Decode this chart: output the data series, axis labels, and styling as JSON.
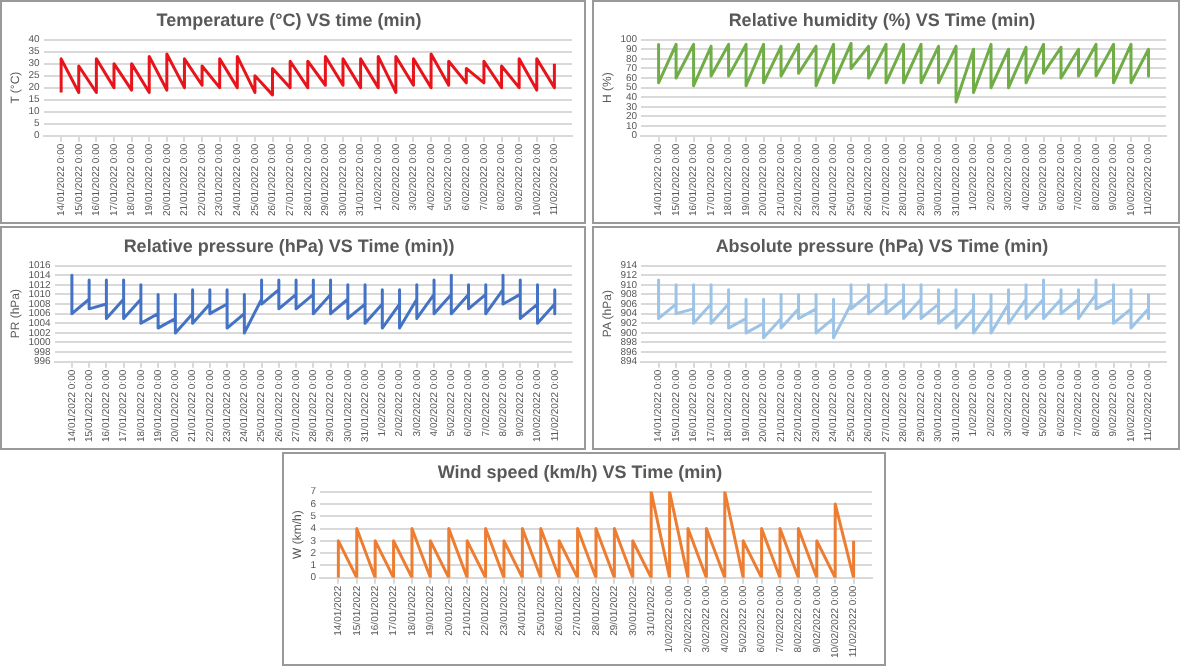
{
  "chart_data": [
    {
      "type": "line",
      "title": "Temperature (°C) VS time (min)",
      "ylabel": "T (°C)",
      "grid": "y",
      "marker": "none",
      "legend": false,
      "x": [
        "2022-01-14",
        "2022-01-14",
        "2022-01-15",
        "2022-01-15",
        "2022-01-16",
        "2022-01-16",
        "2022-01-17",
        "2022-01-17",
        "2022-01-18",
        "2022-01-18",
        "2022-01-19",
        "2022-01-19",
        "2022-01-20",
        "2022-01-20",
        "2022-01-21",
        "2022-01-21",
        "2022-01-22",
        "2022-01-22",
        "2022-01-23",
        "2022-01-23",
        "2022-01-24",
        "2022-01-24",
        "2022-01-25",
        "2022-01-25",
        "2022-01-26",
        "2022-01-26",
        "2022-01-27",
        "2022-01-27",
        "2022-01-28",
        "2022-01-28",
        "2022-01-29",
        "2022-01-29",
        "2022-01-30",
        "2022-01-30",
        "2022-01-31",
        "2022-01-31",
        "2022-02-01",
        "2022-02-01",
        "2022-02-02",
        "2022-02-02",
        "2022-02-03",
        "2022-02-03",
        "2022-02-04",
        "2022-02-04",
        "2022-02-05",
        "2022-02-05",
        "2022-02-06",
        "2022-02-06",
        "2022-02-07",
        "2022-02-07",
        "2022-02-08",
        "2022-02-08",
        "2022-02-09",
        "2022-02-09",
        "2022-02-10",
        "2022-02-10",
        "2022-02-11",
        "2022-02-11"
      ],
      "series": [
        {
          "color": "#e8141b",
          "values": [
            18,
            32,
            18,
            29,
            18,
            32,
            20,
            30,
            19,
            30,
            18,
            33,
            19,
            34,
            20,
            32,
            21,
            29,
            20,
            32,
            20,
            33,
            18,
            25,
            17,
            28,
            20,
            31,
            20,
            31,
            21,
            33,
            21,
            32,
            20,
            32,
            20,
            33,
            18,
            33,
            21,
            32,
            20,
            34,
            21,
            31,
            22,
            28,
            22,
            31,
            20,
            29,
            20,
            32,
            19,
            32,
            20,
            30
          ]
        }
      ],
      "xlim": [
        "2022-01-13",
        "2022-02-12"
      ],
      "ylim": [
        0,
        40
      ],
      "yticks": [
        0,
        5,
        10,
        15,
        20,
        25,
        30,
        35,
        40
      ],
      "xticks": [
        {
          "value": "2022-01-14",
          "label": "14/01/2022 0:00"
        },
        {
          "value": "2022-01-15",
          "label": "15/01/2022 0:00"
        },
        {
          "value": "2022-01-16",
          "label": "16/01/2022 0:00"
        },
        {
          "value": "2022-01-17",
          "label": "17/01/2022 0:00"
        },
        {
          "value": "2022-01-18",
          "label": "18/01/2022 0:00"
        },
        {
          "value": "2022-01-19",
          "label": "19/01/2022 0:00"
        },
        {
          "value": "2022-01-20",
          "label": "20/01/2022 0:00"
        },
        {
          "value": "2022-01-21",
          "label": "21/01/2022 0:00"
        },
        {
          "value": "2022-01-22",
          "label": "22/01/2022 0:00"
        },
        {
          "value": "2022-01-23",
          "label": "23/01/2022 0:00"
        },
        {
          "value": "2022-01-24",
          "label": "24/01/2022 0:00"
        },
        {
          "value": "2022-01-25",
          "label": "25/01/2022 0:00"
        },
        {
          "value": "2022-01-26",
          "label": "26/01/2022 0:00"
        },
        {
          "value": "2022-01-27",
          "label": "27/01/2022 0:00"
        },
        {
          "value": "2022-01-28",
          "label": "28/01/2022 0:00"
        },
        {
          "value": "2022-01-29",
          "label": "29/01/2022 0:00"
        },
        {
          "value": "2022-01-30",
          "label": "30/01/2022 0:00"
        },
        {
          "value": "2022-01-31",
          "label": "31/01/2022 0:00"
        },
        {
          "value": "2022-02-01",
          "label": "1/02/2022 0:00"
        },
        {
          "value": "2022-02-02",
          "label": "2/02/2022 0:00"
        },
        {
          "value": "2022-02-03",
          "label": "3/02/2022 0:00"
        },
        {
          "value": "2022-02-04",
          "label": "4/02/2022 0:00"
        },
        {
          "value": "2022-02-05",
          "label": "5/02/2022 0:00"
        },
        {
          "value": "2022-02-06",
          "label": "6/02/2022 0:00"
        },
        {
          "value": "2022-02-07",
          "label": "7/02/2022 0:00"
        },
        {
          "value": "2022-02-08",
          "label": "8/02/2022 0:00"
        },
        {
          "value": "2022-02-09",
          "label": "9/02/2022 0:00"
        },
        {
          "value": "2022-02-10",
          "label": "10/02/2022 0:00"
        },
        {
          "value": "2022-02-11",
          "label": "11/02/2022 0:00"
        }
      ]
    },
    {
      "type": "line",
      "title": "Relative humidity (%) VS Time (min)",
      "ylabel": "H (%)",
      "grid": "y",
      "marker": "none",
      "legend": false,
      "x": [
        "2022-01-14",
        "2022-01-14",
        "2022-01-15",
        "2022-01-15",
        "2022-01-16",
        "2022-01-16",
        "2022-01-17",
        "2022-01-17",
        "2022-01-18",
        "2022-01-18",
        "2022-01-19",
        "2022-01-19",
        "2022-01-20",
        "2022-01-20",
        "2022-01-21",
        "2022-01-21",
        "2022-01-22",
        "2022-01-22",
        "2022-01-23",
        "2022-01-23",
        "2022-01-24",
        "2022-01-24",
        "2022-01-25",
        "2022-01-25",
        "2022-01-26",
        "2022-01-26",
        "2022-01-27",
        "2022-01-27",
        "2022-01-28",
        "2022-01-28",
        "2022-01-29",
        "2022-01-29",
        "2022-01-30",
        "2022-01-30",
        "2022-01-31",
        "2022-01-31",
        "2022-02-01",
        "2022-02-01",
        "2022-02-02",
        "2022-02-02",
        "2022-02-03",
        "2022-02-03",
        "2022-02-04",
        "2022-02-04",
        "2022-02-05",
        "2022-02-05",
        "2022-02-06",
        "2022-02-06",
        "2022-02-07",
        "2022-02-07",
        "2022-02-08",
        "2022-02-08",
        "2022-02-09",
        "2022-02-09",
        "2022-02-10",
        "2022-02-10",
        "2022-02-11",
        "2022-02-11"
      ],
      "series": [
        {
          "color": "#70ad47",
          "values": [
            95,
            55,
            95,
            60,
            95,
            52,
            93,
            62,
            95,
            62,
            95,
            52,
            95,
            55,
            93,
            62,
            95,
            65,
            93,
            52,
            95,
            55,
            96,
            70,
            93,
            60,
            95,
            55,
            95,
            55,
            95,
            55,
            93,
            55,
            93,
            35,
            90,
            45,
            95,
            50,
            90,
            50,
            92,
            55,
            95,
            65,
            92,
            60,
            90,
            62,
            95,
            62,
            95,
            55,
            95,
            55,
            90,
            62
          ]
        }
      ],
      "xlim": [
        "2022-01-13",
        "2022-02-12"
      ],
      "ylim": [
        0,
        100
      ],
      "yticks": [
        0,
        10,
        20,
        30,
        40,
        50,
        60,
        70,
        80,
        90,
        100
      ],
      "xticks": [
        {
          "value": "2022-01-14",
          "label": "14/01/2022 0:00"
        },
        {
          "value": "2022-01-15",
          "label": "15/01/2022 0:00"
        },
        {
          "value": "2022-01-16",
          "label": "16/01/2022 0:00"
        },
        {
          "value": "2022-01-17",
          "label": "17/01/2022 0:00"
        },
        {
          "value": "2022-01-18",
          "label": "18/01/2022 0:00"
        },
        {
          "value": "2022-01-19",
          "label": "19/01/2022 0:00"
        },
        {
          "value": "2022-01-20",
          "label": "20/01/2022 0:00"
        },
        {
          "value": "2022-01-21",
          "label": "21/01/2022 0:00"
        },
        {
          "value": "2022-01-22",
          "label": "22/01/2022 0:00"
        },
        {
          "value": "2022-01-23",
          "label": "23/01/2022 0:00"
        },
        {
          "value": "2022-01-24",
          "label": "24/01/2022 0:00"
        },
        {
          "value": "2022-01-25",
          "label": "25/01/2022 0:00"
        },
        {
          "value": "2022-01-26",
          "label": "26/01/2022 0:00"
        },
        {
          "value": "2022-01-27",
          "label": "27/01/2022 0:00"
        },
        {
          "value": "2022-01-28",
          "label": "28/01/2022 0:00"
        },
        {
          "value": "2022-01-29",
          "label": "29/01/2022 0:00"
        },
        {
          "value": "2022-01-30",
          "label": "30/01/2022 0:00"
        },
        {
          "value": "2022-01-31",
          "label": "31/01/2022 0:00"
        },
        {
          "value": "2022-02-01",
          "label": "1/02/2022 0:00"
        },
        {
          "value": "2022-02-02",
          "label": "2/02/2022 0:00"
        },
        {
          "value": "2022-02-03",
          "label": "3/02/2022 0:00"
        },
        {
          "value": "2022-02-04",
          "label": "4/02/2022 0:00"
        },
        {
          "value": "2022-02-05",
          "label": "5/02/2022 0:00"
        },
        {
          "value": "2022-02-06",
          "label": "6/02/2022 0:00"
        },
        {
          "value": "2022-02-07",
          "label": "7/02/2022 0:00"
        },
        {
          "value": "2022-02-08",
          "label": "8/02/2022 0:00"
        },
        {
          "value": "2022-02-09",
          "label": "9/02/2022 0:00"
        },
        {
          "value": "2022-02-10",
          "label": "10/02/2022 0:00"
        },
        {
          "value": "2022-02-11",
          "label": "11/02/2022 0:00"
        }
      ]
    },
    {
      "type": "line",
      "title": "Relative pressure (hPa) VS Time (min))",
      "ylabel": "PR (hPa)",
      "grid": "y",
      "marker": "none",
      "legend": false,
      "x": [
        "2022-01-14",
        "2022-01-14",
        "2022-01-14",
        "2022-01-15",
        "2022-01-15",
        "2022-01-15",
        "2022-01-16",
        "2022-01-16",
        "2022-01-16",
        "2022-01-17",
        "2022-01-17",
        "2022-01-17",
        "2022-01-18",
        "2022-01-18",
        "2022-01-18",
        "2022-01-19",
        "2022-01-19",
        "2022-01-19",
        "2022-01-20",
        "2022-01-20",
        "2022-01-20",
        "2022-01-21",
        "2022-01-21",
        "2022-01-21",
        "2022-01-22",
        "2022-01-22",
        "2022-01-22",
        "2022-01-23",
        "2022-01-23",
        "2022-01-23",
        "2022-01-24",
        "2022-01-24",
        "2022-01-24",
        "2022-01-25",
        "2022-01-25",
        "2022-01-25",
        "2022-01-26",
        "2022-01-26",
        "2022-01-26",
        "2022-01-27",
        "2022-01-27",
        "2022-01-27",
        "2022-01-28",
        "2022-01-28",
        "2022-01-28",
        "2022-01-29",
        "2022-01-29",
        "2022-01-29",
        "2022-01-30",
        "2022-01-30",
        "2022-01-30",
        "2022-01-31",
        "2022-01-31",
        "2022-01-31",
        "2022-02-01",
        "2022-02-01",
        "2022-02-01",
        "2022-02-02",
        "2022-02-02",
        "2022-02-02",
        "2022-02-03",
        "2022-02-03",
        "2022-02-03",
        "2022-02-04",
        "2022-02-04",
        "2022-02-04",
        "2022-02-05",
        "2022-02-05",
        "2022-02-05",
        "2022-02-06",
        "2022-02-06",
        "2022-02-06",
        "2022-02-07",
        "2022-02-07",
        "2022-02-07",
        "2022-02-08",
        "2022-02-08",
        "2022-02-08",
        "2022-02-09",
        "2022-02-09",
        "2022-02-09",
        "2022-02-10",
        "2022-02-10",
        "2022-02-10",
        "2022-02-11",
        "2022-02-11",
        "2022-02-11"
      ],
      "series": [
        {
          "color": "#4472c4",
          "values": [
            1008,
            1014,
            1006,
            1009,
            1013,
            1007,
            1008,
            1013,
            1005,
            1009,
            1013,
            1005,
            1009,
            1012,
            1004,
            1006,
            1010,
            1003,
            1005,
            1010,
            1002,
            1006,
            1011,
            1004,
            1008,
            1011,
            1006,
            1008,
            1011,
            1003,
            1006,
            1010,
            1002,
            1009,
            1013,
            1008,
            1011,
            1013,
            1007,
            1010,
            1013,
            1007,
            1010,
            1013,
            1006,
            1010,
            1013,
            1006,
            1009,
            1012,
            1005,
            1008,
            1012,
            1004,
            1008,
            1011,
            1003,
            1008,
            1011,
            1003,
            1009,
            1012,
            1005,
            1010,
            1013,
            1006,
            1010,
            1014,
            1006,
            1010,
            1012,
            1007,
            1010,
            1012,
            1006,
            1011,
            1014,
            1008,
            1010,
            1013,
            1005,
            1008,
            1012,
            1004,
            1008,
            1011,
            1006
          ]
        }
      ],
      "xlim": [
        "2022-01-13",
        "2022-02-12"
      ],
      "ylim": [
        996,
        1016
      ],
      "yticks": [
        996,
        998,
        1000,
        1002,
        1004,
        1006,
        1008,
        1010,
        1012,
        1014,
        1016
      ],
      "xticks": [
        {
          "value": "2022-01-14",
          "label": "14/01/2022 0:00"
        },
        {
          "value": "2022-01-15",
          "label": "15/01/2022 0:00"
        },
        {
          "value": "2022-01-16",
          "label": "16/01/2022 0:00"
        },
        {
          "value": "2022-01-17",
          "label": "17/01/2022 0:00"
        },
        {
          "value": "2022-01-18",
          "label": "18/01/2022 0:00"
        },
        {
          "value": "2022-01-19",
          "label": "19/01/2022 0:00"
        },
        {
          "value": "2022-01-20",
          "label": "20/01/2022 0:00"
        },
        {
          "value": "2022-01-21",
          "label": "21/01/2022 0:00"
        },
        {
          "value": "2022-01-22",
          "label": "22/01/2022 0:00"
        },
        {
          "value": "2022-01-23",
          "label": "23/01/2022 0:00"
        },
        {
          "value": "2022-01-24",
          "label": "24/01/2022 0:00"
        },
        {
          "value": "2022-01-25",
          "label": "25/01/2022 0:00"
        },
        {
          "value": "2022-01-26",
          "label": "26/01/2022 0:00"
        },
        {
          "value": "2022-01-27",
          "label": "27/01/2022 0:00"
        },
        {
          "value": "2022-01-28",
          "label": "28/01/2022 0:00"
        },
        {
          "value": "2022-01-29",
          "label": "29/01/2022 0:00"
        },
        {
          "value": "2022-01-30",
          "label": "30/01/2022 0:00"
        },
        {
          "value": "2022-01-31",
          "label": "31/01/2022 0:00"
        },
        {
          "value": "2022-02-01",
          "label": "1/02/2022 0:00"
        },
        {
          "value": "2022-02-02",
          "label": "2/02/2022 0:00"
        },
        {
          "value": "2022-02-03",
          "label": "3/02/2022 0:00"
        },
        {
          "value": "2022-02-04",
          "label": "4/02/2022 0:00"
        },
        {
          "value": "2022-02-05",
          "label": "5/02/2022 0:00"
        },
        {
          "value": "2022-02-06",
          "label": "6/02/2022 0:00"
        },
        {
          "value": "2022-02-07",
          "label": "7/02/2022 0:00"
        },
        {
          "value": "2022-02-08",
          "label": "8/02/2022 0:00"
        },
        {
          "value": "2022-02-09",
          "label": "9/02/2022 0:00"
        },
        {
          "value": "2022-02-10",
          "label": "10/02/2022 0:00"
        },
        {
          "value": "2022-02-11",
          "label": "11/02/2022 0:00"
        }
      ]
    },
    {
      "type": "line",
      "title": "Absolute pressure (hPa) VS Time (min)",
      "ylabel": "PA (hPa)",
      "grid": "y",
      "marker": "none",
      "legend": false,
      "x": [
        "2022-01-14",
        "2022-01-14",
        "2022-01-14",
        "2022-01-15",
        "2022-01-15",
        "2022-01-15",
        "2022-01-16",
        "2022-01-16",
        "2022-01-16",
        "2022-01-17",
        "2022-01-17",
        "2022-01-17",
        "2022-01-18",
        "2022-01-18",
        "2022-01-18",
        "2022-01-19",
        "2022-01-19",
        "2022-01-19",
        "2022-01-20",
        "2022-01-20",
        "2022-01-20",
        "2022-01-21",
        "2022-01-21",
        "2022-01-21",
        "2022-01-22",
        "2022-01-22",
        "2022-01-22",
        "2022-01-23",
        "2022-01-23",
        "2022-01-23",
        "2022-01-24",
        "2022-01-24",
        "2022-01-24",
        "2022-01-25",
        "2022-01-25",
        "2022-01-25",
        "2022-01-26",
        "2022-01-26",
        "2022-01-26",
        "2022-01-27",
        "2022-01-27",
        "2022-01-27",
        "2022-01-28",
        "2022-01-28",
        "2022-01-28",
        "2022-01-29",
        "2022-01-29",
        "2022-01-29",
        "2022-01-30",
        "2022-01-30",
        "2022-01-30",
        "2022-01-31",
        "2022-01-31",
        "2022-01-31",
        "2022-02-01",
        "2022-02-01",
        "2022-02-01",
        "2022-02-02",
        "2022-02-02",
        "2022-02-02",
        "2022-02-03",
        "2022-02-03",
        "2022-02-03",
        "2022-02-04",
        "2022-02-04",
        "2022-02-04",
        "2022-02-05",
        "2022-02-05",
        "2022-02-05",
        "2022-02-06",
        "2022-02-06",
        "2022-02-06",
        "2022-02-07",
        "2022-02-07",
        "2022-02-07",
        "2022-02-08",
        "2022-02-08",
        "2022-02-08",
        "2022-02-09",
        "2022-02-09",
        "2022-02-09",
        "2022-02-10",
        "2022-02-10",
        "2022-02-10",
        "2022-02-11",
        "2022-02-11",
        "2022-02-11"
      ],
      "series": [
        {
          "color": "#9dc3e6",
          "values": [
            905,
            911,
            903,
            906,
            910,
            904,
            905,
            910,
            902,
            906,
            910,
            902,
            906,
            909,
            901,
            903,
            907,
            900,
            902,
            907,
            899,
            903,
            908,
            901,
            905,
            908,
            903,
            905,
            908,
            900,
            903,
            907,
            899,
            906,
            910,
            905,
            908,
            910,
            904,
            907,
            910,
            904,
            907,
            910,
            903,
            907,
            910,
            903,
            906,
            909,
            902,
            905,
            909,
            901,
            905,
            908,
            900,
            905,
            908,
            900,
            906,
            909,
            902,
            907,
            910,
            903,
            907,
            911,
            903,
            907,
            909,
            904,
            907,
            909,
            903,
            908,
            911,
            905,
            907,
            910,
            902,
            905,
            909,
            901,
            905,
            908,
            903
          ]
        }
      ],
      "xlim": [
        "2022-01-13",
        "2022-02-12"
      ],
      "ylim": [
        894,
        914
      ],
      "yticks": [
        894,
        896,
        898,
        900,
        902,
        904,
        906,
        908,
        910,
        912,
        914
      ],
      "xticks": [
        {
          "value": "2022-01-14",
          "label": "14/01/2022 0:00"
        },
        {
          "value": "2022-01-15",
          "label": "15/01/2022 0:00"
        },
        {
          "value": "2022-01-16",
          "label": "16/01/2022 0:00"
        },
        {
          "value": "2022-01-17",
          "label": "17/01/2022 0:00"
        },
        {
          "value": "2022-01-18",
          "label": "18/01/2022 0:00"
        },
        {
          "value": "2022-01-19",
          "label": "19/01/2022 0:00"
        },
        {
          "value": "2022-01-20",
          "label": "20/01/2022 0:00"
        },
        {
          "value": "2022-01-21",
          "label": "21/01/2022 0:00"
        },
        {
          "value": "2022-01-22",
          "label": "22/01/2022 0:00"
        },
        {
          "value": "2022-01-23",
          "label": "23/01/2022 0:00"
        },
        {
          "value": "2022-01-24",
          "label": "24/01/2022 0:00"
        },
        {
          "value": "2022-01-25",
          "label": "25/01/2022 0:00"
        },
        {
          "value": "2022-01-26",
          "label": "26/01/2022 0:00"
        },
        {
          "value": "2022-01-27",
          "label": "27/01/2022 0:00"
        },
        {
          "value": "2022-01-28",
          "label": "28/01/2022 0:00"
        },
        {
          "value": "2022-01-29",
          "label": "29/01/2022 0:00"
        },
        {
          "value": "2022-01-30",
          "label": "30/01/2022 0:00"
        },
        {
          "value": "2022-01-31",
          "label": "31/01/2022 0:00"
        },
        {
          "value": "2022-02-01",
          "label": "1/02/2022 0:00"
        },
        {
          "value": "2022-02-02",
          "label": "2/02/2022 0:00"
        },
        {
          "value": "2022-02-03",
          "label": "3/02/2022 0:00"
        },
        {
          "value": "2022-02-04",
          "label": "4/02/2022 0:00"
        },
        {
          "value": "2022-02-05",
          "label": "5/02/2022 0:00"
        },
        {
          "value": "2022-02-06",
          "label": "6/02/2022 0:00"
        },
        {
          "value": "2022-02-07",
          "label": "7/02/2022 0:00"
        },
        {
          "value": "2022-02-08",
          "label": "8/02/2022 0:00"
        },
        {
          "value": "2022-02-09",
          "label": "9/02/2022 0:00"
        },
        {
          "value": "2022-02-10",
          "label": "10/02/2022 0:00"
        },
        {
          "value": "2022-02-11",
          "label": "11/02/2022 0:00"
        }
      ]
    },
    {
      "type": "line",
      "title": "Wind speed (km/h) VS Time (min)",
      "ylabel": "W (km/h)",
      "grid": "y",
      "marker": "none",
      "legend": false,
      "x": [
        "2022-01-14",
        "2022-01-14",
        "2022-01-15",
        "2022-01-15",
        "2022-01-16",
        "2022-01-16",
        "2022-01-17",
        "2022-01-17",
        "2022-01-18",
        "2022-01-18",
        "2022-01-19",
        "2022-01-19",
        "2022-01-20",
        "2022-01-20",
        "2022-01-21",
        "2022-01-21",
        "2022-01-22",
        "2022-01-22",
        "2022-01-23",
        "2022-01-23",
        "2022-01-24",
        "2022-01-24",
        "2022-01-25",
        "2022-01-25",
        "2022-01-26",
        "2022-01-26",
        "2022-01-27",
        "2022-01-27",
        "2022-01-28",
        "2022-01-28",
        "2022-01-29",
        "2022-01-29",
        "2022-01-30",
        "2022-01-30",
        "2022-01-31",
        "2022-01-31",
        "2022-02-01",
        "2022-02-01",
        "2022-02-02",
        "2022-02-02",
        "2022-02-03",
        "2022-02-03",
        "2022-02-04",
        "2022-02-04",
        "2022-02-05",
        "2022-02-05",
        "2022-02-06",
        "2022-02-06",
        "2022-02-07",
        "2022-02-07",
        "2022-02-08",
        "2022-02-08",
        "2022-02-09",
        "2022-02-09",
        "2022-02-10",
        "2022-02-10",
        "2022-02-11",
        "2022-02-11"
      ],
      "series": [
        {
          "color": "#ed7d31",
          "values": [
            0,
            3,
            0,
            4,
            0,
            3,
            0,
            3,
            0,
            4,
            0,
            3,
            0,
            4,
            0,
            3,
            0,
            4,
            0,
            3,
            0,
            4,
            0,
            4,
            0,
            3,
            0,
            4,
            0,
            4,
            0,
            4,
            0,
            3,
            0,
            7,
            0,
            7,
            0,
            4,
            0,
            4,
            0,
            7,
            0,
            3,
            0,
            4,
            0,
            4,
            0,
            4,
            0,
            3,
            0,
            6,
            0,
            3
          ]
        }
      ],
      "xlim": [
        "2022-01-13",
        "2022-02-12"
      ],
      "ylim": [
        0,
        7
      ],
      "yticks": [
        0,
        1,
        2,
        3,
        4,
        5,
        6,
        7
      ],
      "xticks": [
        {
          "value": "2022-01-14",
          "label": "14/01/2022"
        },
        {
          "value": "2022-01-15",
          "label": "15/01/2022"
        },
        {
          "value": "2022-01-16",
          "label": "16/01/2022"
        },
        {
          "value": "2022-01-17",
          "label": "17/01/2022"
        },
        {
          "value": "2022-01-18",
          "label": "18/01/2022"
        },
        {
          "value": "2022-01-19",
          "label": "19/01/2022"
        },
        {
          "value": "2022-01-20",
          "label": "20/01/2022"
        },
        {
          "value": "2022-01-21",
          "label": "21/01/2022"
        },
        {
          "value": "2022-01-22",
          "label": "22/01/2022"
        },
        {
          "value": "2022-01-23",
          "label": "23/01/2022"
        },
        {
          "value": "2022-01-24",
          "label": "24/01/2022"
        },
        {
          "value": "2022-01-25",
          "label": "25/01/2022"
        },
        {
          "value": "2022-01-26",
          "label": "26/01/2022"
        },
        {
          "value": "2022-01-27",
          "label": "27/01/2022"
        },
        {
          "value": "2022-01-28",
          "label": "28/01/2022"
        },
        {
          "value": "2022-01-29",
          "label": "29/01/2022"
        },
        {
          "value": "2022-01-30",
          "label": "30/01/2022"
        },
        {
          "value": "2022-01-31",
          "label": "31/01/2022"
        },
        {
          "value": "2022-02-01",
          "label": "1/02/2022 0:00"
        },
        {
          "value": "2022-02-02",
          "label": "2/02/2022 0:00"
        },
        {
          "value": "2022-02-03",
          "label": "3/02/2022 0:00"
        },
        {
          "value": "2022-02-04",
          "label": "4/02/2022 0:00"
        },
        {
          "value": "2022-02-05",
          "label": "5/02/2022 0:00"
        },
        {
          "value": "2022-02-06",
          "label": "6/02/2022 0:00"
        },
        {
          "value": "2022-02-07",
          "label": "7/02/2022 0:00"
        },
        {
          "value": "2022-02-08",
          "label": "8/02/2022 0:00"
        },
        {
          "value": "2022-02-09",
          "label": "9/02/2022 0:00"
        },
        {
          "value": "2022-02-10",
          "label": "10/02/2022 0:00"
        },
        {
          "value": "2022-02-11",
          "label": "11/02/2022 0:00"
        }
      ]
    }
  ]
}
